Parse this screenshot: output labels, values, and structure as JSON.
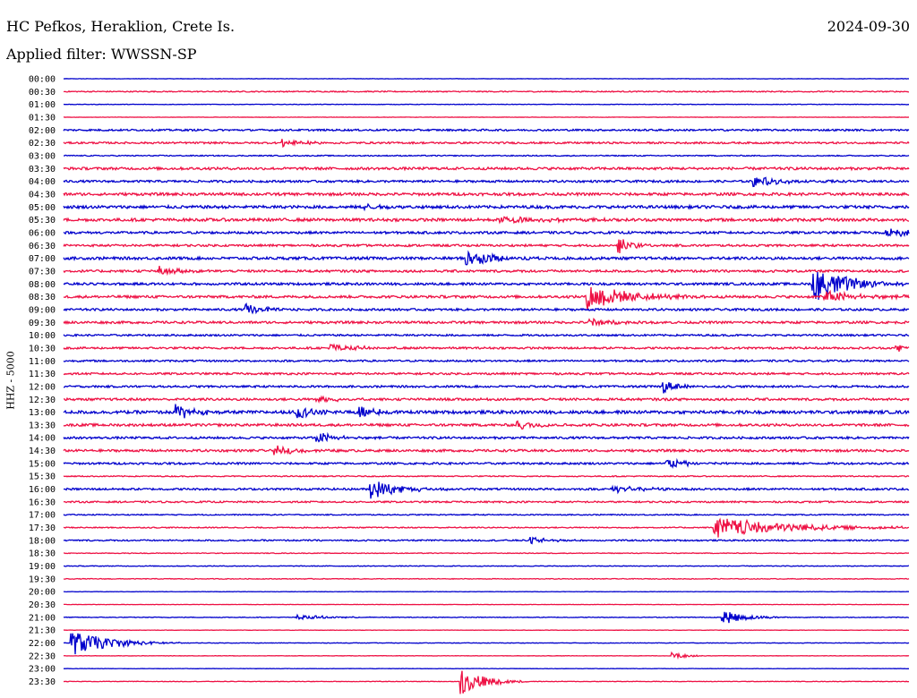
{
  "header": {
    "station": "HC Pefkos, Heraklion, Crete Is.",
    "date": "2024-09-30",
    "filter": "Applied filter: WWSSN-SP"
  },
  "chart_data": {
    "type": "line",
    "title": "HC Pefkos, Heraklion, Crete Is.",
    "ylabel": "HHZ - 5000",
    "xlabel": "",
    "row_labels": [
      "00:00",
      "00:30",
      "01:00",
      "01:30",
      "02:00",
      "02:30",
      "03:00",
      "03:30",
      "04:00",
      "04:30",
      "05:00",
      "05:30",
      "06:00",
      "06:30",
      "07:00",
      "07:30",
      "08:00",
      "08:30",
      "09:00",
      "09:30",
      "10:00",
      "10:30",
      "11:00",
      "11:30",
      "12:00",
      "12:30",
      "13:00",
      "13:30",
      "14:00",
      "14:30",
      "15:00",
      "15:30",
      "16:00",
      "16:30",
      "17:00",
      "17:30",
      "18:00",
      "18:30",
      "19:00",
      "19:30",
      "20:00",
      "20:30",
      "21:00",
      "21:30",
      "22:00",
      "22:30",
      "23:00",
      "23:30"
    ],
    "row_minutes": 30,
    "colors": [
      "#0000cc",
      "#ee1144"
    ],
    "noise": [
      0.2,
      0.6,
      0.3,
      0.2,
      1,
      1,
      0.6,
      1.4,
      1.2,
      1.5,
      1.6,
      1.6,
      1.3,
      1.2,
      1.5,
      1.3,
      1.3,
      1.4,
      1.2,
      1.3,
      1,
      1.1,
      1,
      1.1,
      1.1,
      1.3,
      1.7,
      1.4,
      1.2,
      1.3,
      1.1,
      0.6,
      1.1,
      0.9,
      0.6,
      0.6,
      0.8,
      0.4,
      0.4,
      0.4,
      0.2,
      0.2,
      0.4,
      0.2,
      0.3,
      0.2,
      0.2,
      0.3
    ],
    "events": [
      {
        "row": 5,
        "minute": 7.8,
        "amp": 5,
        "dur": 0.6
      },
      {
        "row": 8,
        "minute": 24.5,
        "amp": 6,
        "dur": 1
      },
      {
        "row": 10,
        "minute": 10.7,
        "amp": 3,
        "dur": 0.5
      },
      {
        "row": 11,
        "minute": 15.5,
        "amp": 4,
        "dur": 1.5
      },
      {
        "row": 12,
        "minute": 29.2,
        "amp": 5,
        "dur": 1
      },
      {
        "row": 13,
        "minute": 19.7,
        "amp": 10,
        "dur": 0.4
      },
      {
        "row": 14,
        "minute": 14.3,
        "amp": 9,
        "dur": 1
      },
      {
        "row": 15,
        "minute": 3.4,
        "amp": 6,
        "dur": 0.6
      },
      {
        "row": 16,
        "minute": 26.6,
        "amp": 20,
        "dur": 1.2
      },
      {
        "row": 17,
        "minute": 18.6,
        "amp": 15,
        "dur": 1.4
      },
      {
        "row": 17,
        "minute": 27,
        "amp": 6,
        "dur": 1.5
      },
      {
        "row": 18,
        "minute": 6.5,
        "amp": 6,
        "dur": 0.6
      },
      {
        "row": 19,
        "minute": 18.7,
        "amp": 5,
        "dur": 0.6
      },
      {
        "row": 21,
        "minute": 9.5,
        "amp": 5,
        "dur": 0.8
      },
      {
        "row": 21,
        "minute": 29.5,
        "amp": 5,
        "dur": 0.5
      },
      {
        "row": 24,
        "minute": 21.3,
        "amp": 7,
        "dur": 0.6
      },
      {
        "row": 25,
        "minute": 9,
        "amp": 5,
        "dur": 0.6
      },
      {
        "row": 26,
        "minute": 4,
        "amp": 9,
        "dur": 0.6
      },
      {
        "row": 26,
        "minute": 8.3,
        "amp": 7,
        "dur": 0.6
      },
      {
        "row": 26,
        "minute": 10.5,
        "amp": 8,
        "dur": 0.6
      },
      {
        "row": 27,
        "minute": 16.1,
        "amp": 6,
        "dur": 0.6
      },
      {
        "row": 28,
        "minute": 9,
        "amp": 6,
        "dur": 0.8
      },
      {
        "row": 29,
        "minute": 7.5,
        "amp": 5,
        "dur": 0.8
      },
      {
        "row": 30,
        "minute": 21.4,
        "amp": 5,
        "dur": 0.8
      },
      {
        "row": 32,
        "minute": 10.9,
        "amp": 11,
        "dur": 1
      },
      {
        "row": 32,
        "minute": 19.5,
        "amp": 4,
        "dur": 1
      },
      {
        "row": 35,
        "minute": 23.1,
        "amp": 12,
        "dur": 2.5
      },
      {
        "row": 36,
        "minute": 16.6,
        "amp": 4,
        "dur": 0.6
      },
      {
        "row": 42,
        "minute": 23.4,
        "amp": 8,
        "dur": 0.8
      },
      {
        "row": 42,
        "minute": 8.3,
        "amp": 3,
        "dur": 1
      },
      {
        "row": 44,
        "minute": 0.3,
        "amp": 14,
        "dur": 1.3
      },
      {
        "row": 45,
        "minute": 21.6,
        "amp": 4,
        "dur": 0.5
      },
      {
        "row": 47,
        "minute": 14.1,
        "amp": 16,
        "dur": 0.8
      }
    ]
  }
}
